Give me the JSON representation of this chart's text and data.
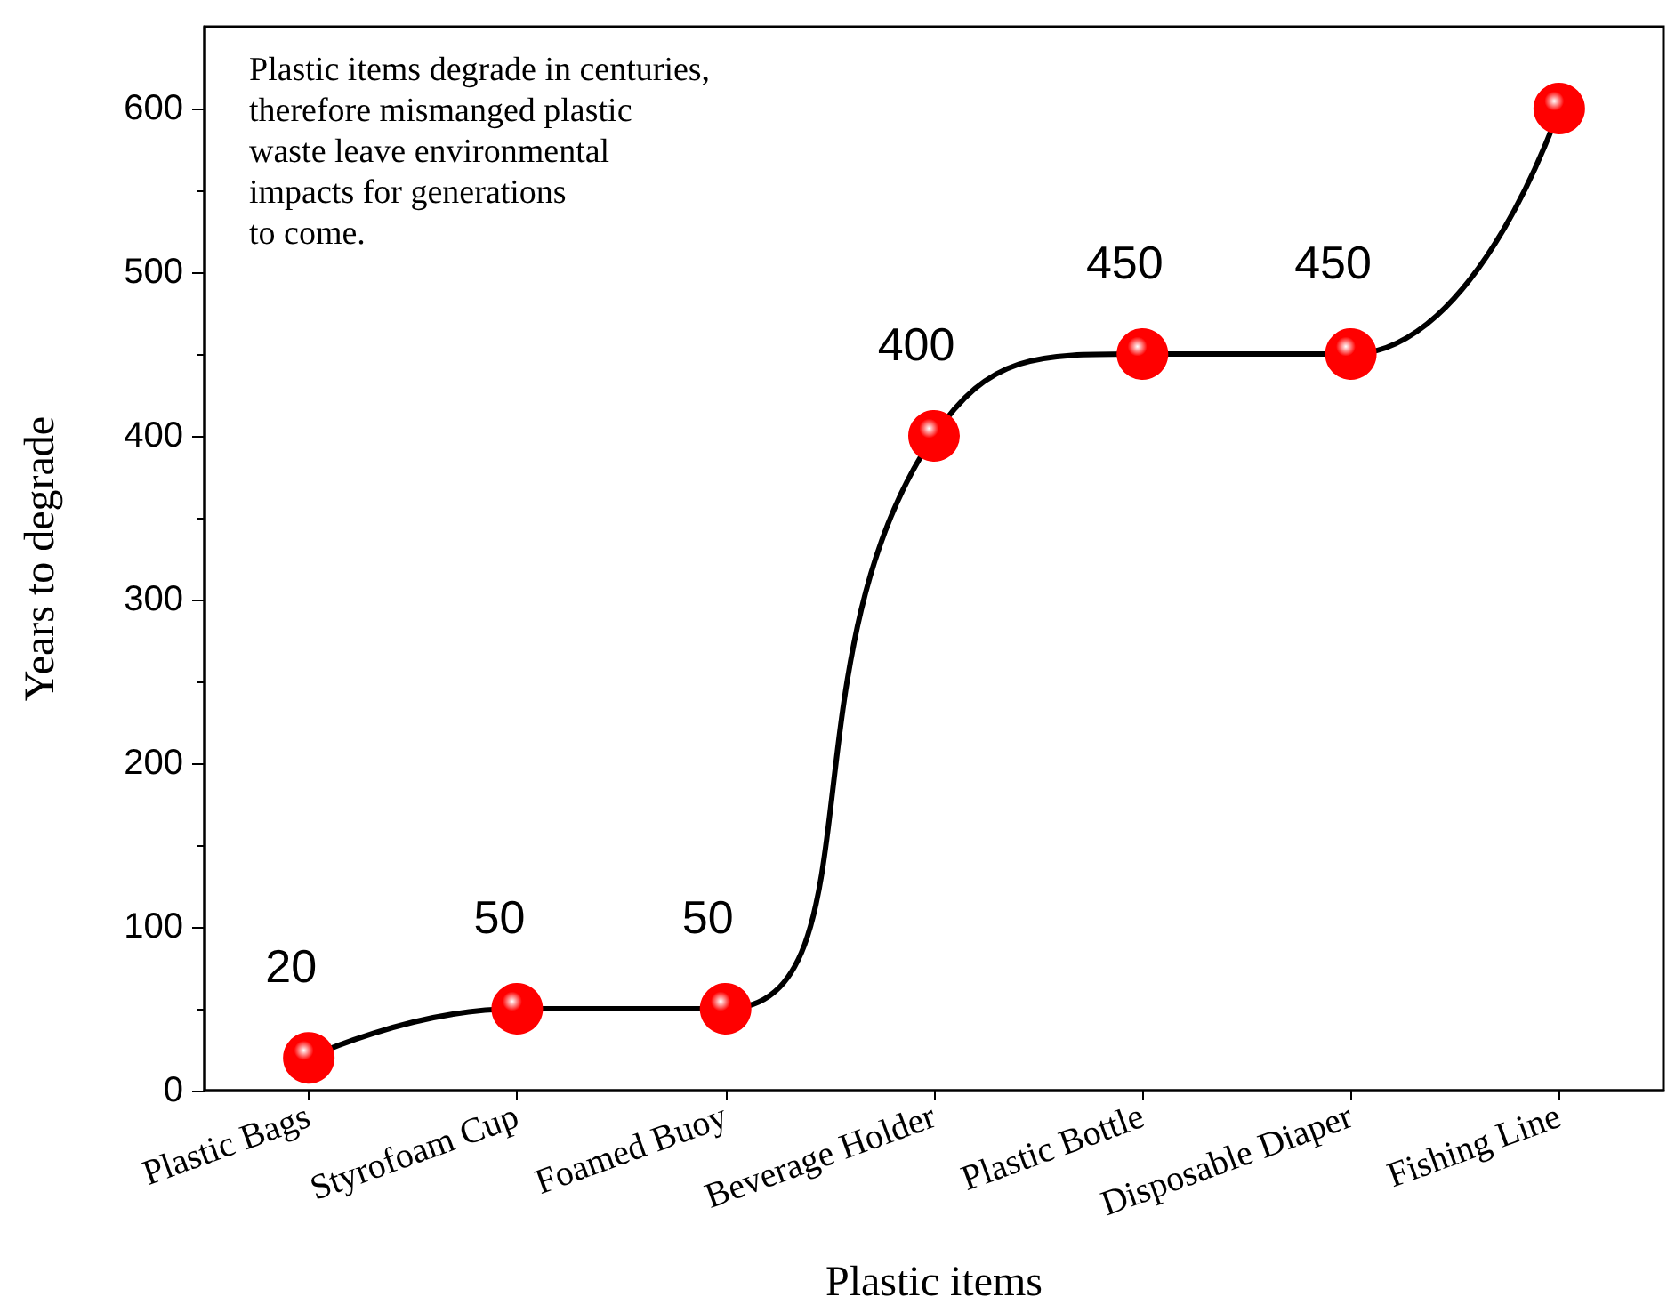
{
  "chart_data": {
    "type": "line",
    "xlabel": "Plastic items",
    "ylabel": "Years to degrade",
    "categories": [
      "Plastic Bags",
      "Styrofoam Cup",
      "Foamed Buoy",
      "Beverage Holder",
      "Plastic Bottle",
      "Disposable Diaper",
      "Fishing Line"
    ],
    "series": [
      {
        "color": "#ff0000",
        "values": [
          20,
          50,
          50,
          400,
          450,
          450,
          600
        ],
        "value_labels": [
          "20",
          "50",
          "50",
          "400",
          "450",
          "450",
          null
        ]
      }
    ],
    "ylim": [
      0,
      650
    ],
    "yticks": [
      0,
      100,
      200,
      300,
      400,
      500,
      600
    ],
    "annotations": [
      "Plastic items degrade in centuries,\ntherefore mismanged plastic\nwaste leave environmental\nimpacts for generations\nto come."
    ],
    "marker": "circle",
    "line_style": "solid",
    "grid": false
  }
}
